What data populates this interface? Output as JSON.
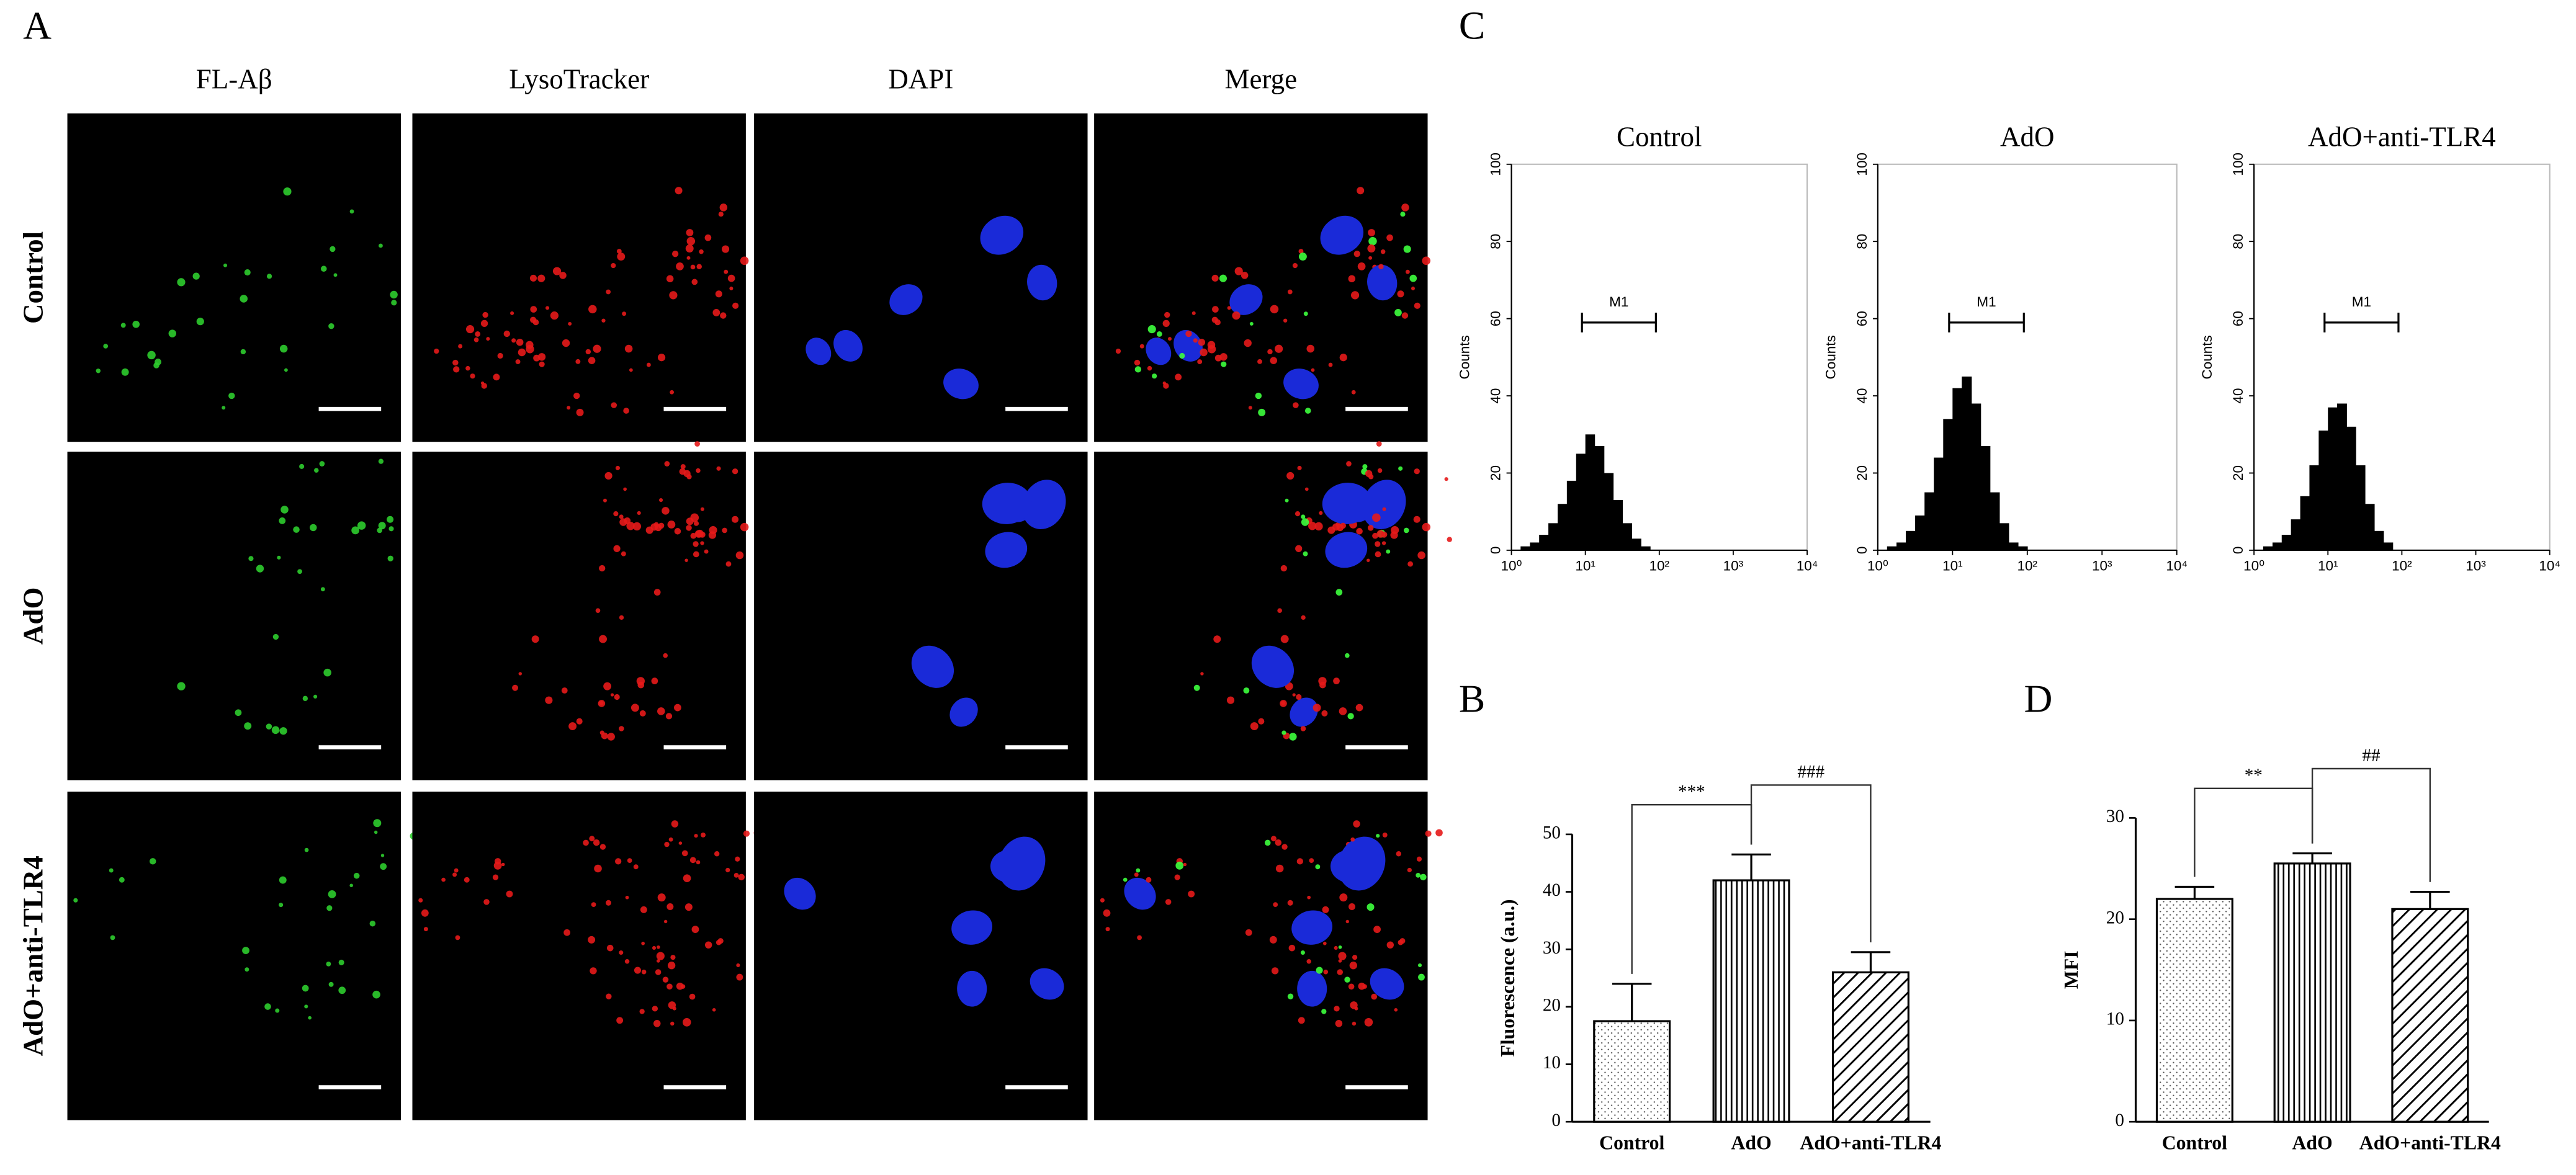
{
  "panel_labels": [
    "A",
    "B",
    "C",
    "D"
  ],
  "microscopy": {
    "columns": [
      "FL-Aβ",
      "LysoTracker",
      "DAPI",
      "Merge"
    ],
    "rows": [
      "Control",
      "AdO",
      "AdO+anti-TLR4"
    ]
  },
  "chart_data": [
    {
      "type": "histogram",
      "title": "Control",
      "ylabel": "Counts",
      "xscale": "log",
      "color": "#000000",
      "bins": [
        1,
        1.33,
        1.78,
        2.37,
        3.16,
        4.22,
        5.62,
        7.5,
        10,
        13.3,
        17.8,
        23.7,
        31.6,
        42.2,
        56.2,
        75,
        100
      ],
      "counts": [
        0,
        1,
        2,
        4,
        7,
        12,
        18,
        25,
        30,
        27,
        20,
        13,
        7,
        3,
        1,
        0
      ],
      "xlim": [
        1,
        10000
      ],
      "xticks": [
        {
          "value": 1,
          "label": "10⁰"
        },
        {
          "value": 10,
          "label": "10¹"
        },
        {
          "value": 100,
          "label": "10²"
        },
        {
          "value": 1000,
          "label": "10³"
        },
        {
          "value": 10000,
          "label": "10⁴"
        }
      ],
      "ylim": [
        0,
        100
      ],
      "yticks": [
        0,
        20,
        40,
        60,
        80,
        100
      ],
      "marker": {
        "label": "M1",
        "range": [
          9,
          90
        ]
      }
    },
    {
      "type": "histogram",
      "title": "AdO",
      "ylabel": "Counts",
      "xscale": "log",
      "color": "#000000",
      "bins": [
        1,
        1.33,
        1.78,
        2.37,
        3.16,
        4.22,
        5.62,
        7.5,
        10,
        13.3,
        17.8,
        23.7,
        31.6,
        42.2,
        56.2,
        75,
        100
      ],
      "counts": [
        0,
        1,
        2,
        5,
        9,
        15,
        24,
        34,
        42,
        45,
        38,
        27,
        15,
        7,
        2,
        1
      ],
      "xlim": [
        1,
        10000
      ],
      "xticks": [
        {
          "value": 1,
          "label": "10⁰"
        },
        {
          "value": 10,
          "label": "10¹"
        },
        {
          "value": 100,
          "label": "10²"
        },
        {
          "value": 1000,
          "label": "10³"
        },
        {
          "value": 10000,
          "label": "10⁴"
        }
      ],
      "ylim": [
        0,
        100
      ],
      "yticks": [
        0,
        20,
        40,
        60,
        80,
        100
      ],
      "marker": {
        "label": "M1",
        "range": [
          9,
          90
        ]
      }
    },
    {
      "type": "histogram",
      "title": "AdO+anti-TLR4",
      "ylabel": "Counts",
      "xscale": "log",
      "color": "#000000",
      "bins": [
        1,
        1.33,
        1.78,
        2.37,
        3.16,
        4.22,
        5.62,
        7.5,
        10,
        13.3,
        17.8,
        23.7,
        31.6,
        42.2,
        56.2,
        75,
        100
      ],
      "counts": [
        0,
        1,
        2,
        4,
        8,
        14,
        22,
        31,
        37,
        38,
        32,
        22,
        12,
        5,
        2,
        0
      ],
      "xlim": [
        1,
        10000
      ],
      "xticks": [
        {
          "value": 1,
          "label": "10⁰"
        },
        {
          "value": 10,
          "label": "10¹"
        },
        {
          "value": 100,
          "label": "10²"
        },
        {
          "value": 1000,
          "label": "10³"
        },
        {
          "value": 10000,
          "label": "10⁴"
        }
      ],
      "ylim": [
        0,
        100
      ],
      "yticks": [
        0,
        20,
        40,
        60,
        80,
        100
      ],
      "marker": {
        "label": "M1",
        "range": [
          9,
          90
        ]
      }
    },
    {
      "type": "bar",
      "ylabel": "Fluorescence (a.u.)",
      "categories": [
        "Control",
        "AdO",
        "AdO+anti-TLR4"
      ],
      "values": [
        17.5,
        42,
        26
      ],
      "errors": [
        6.5,
        4.5,
        3.5
      ],
      "patterns": [
        "dots",
        "vertical",
        "diagonal"
      ],
      "ylim": [
        0,
        50
      ],
      "yticks": [
        0,
        10,
        20,
        30,
        40,
        50
      ],
      "annotations": [
        {
          "text": "***",
          "from": 0,
          "to": 1
        },
        {
          "text": "###",
          "from": 1,
          "to": 2
        }
      ]
    },
    {
      "type": "bar",
      "ylabel": "MFI",
      "categories": [
        "Control",
        "AdO",
        "AdO+anti-TLR4"
      ],
      "values": [
        22,
        25.5,
        21
      ],
      "errors": [
        1.2,
        1,
        1.7
      ],
      "patterns": [
        "dots",
        "vertical",
        "diagonal"
      ],
      "ylim": [
        0,
        30
      ],
      "yticks": [
        0,
        10,
        20,
        30
      ],
      "annotations": [
        {
          "text": "**",
          "from": 0,
          "to": 1
        },
        {
          "text": "##",
          "from": 1,
          "to": 2
        }
      ]
    }
  ]
}
